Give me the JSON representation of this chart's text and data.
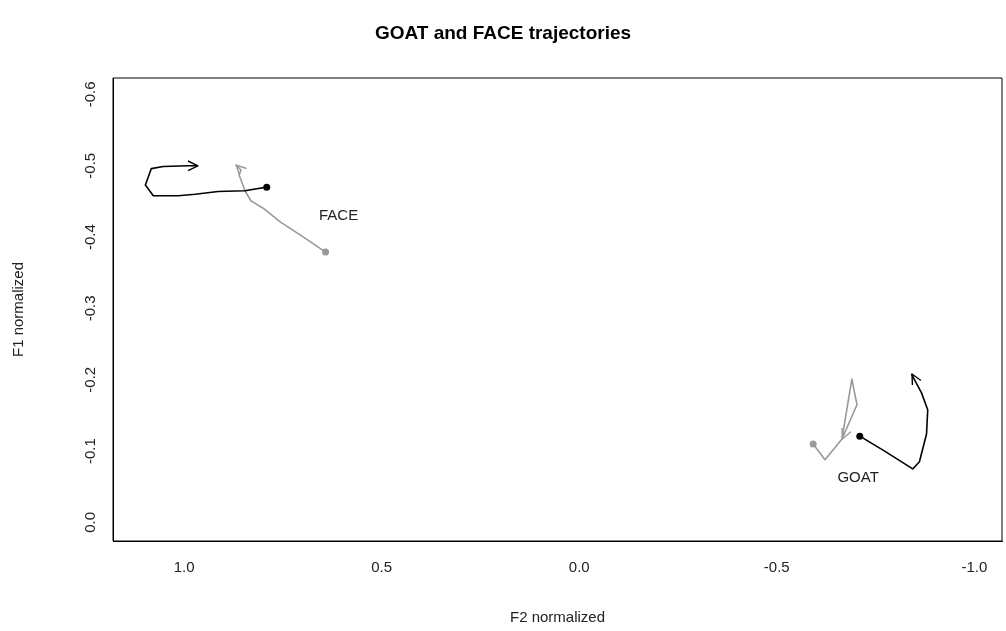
{
  "chart_data": {
    "type": "line",
    "title": "GOAT and FACE trajectories",
    "xlabel": "F2 normalized",
    "ylabel": "F1 normalized",
    "xlim": [
      1.18,
      -1.07
    ],
    "ylim": [
      0.026,
      -0.623
    ],
    "xticks": [
      {
        "value": 1.0,
        "label": "1.0"
      },
      {
        "value": 0.5,
        "label": "0.5"
      },
      {
        "value": 0.0,
        "label": "0.0"
      },
      {
        "value": -0.5,
        "label": "-0.5"
      },
      {
        "value": -1.0,
        "label": "-1.0"
      }
    ],
    "yticks": [
      {
        "value": 0.0,
        "label": "0.0"
      },
      {
        "value": -0.1,
        "label": "-0.1"
      },
      {
        "value": -0.2,
        "label": "-0.2"
      },
      {
        "value": -0.3,
        "label": "-0.3"
      },
      {
        "value": -0.4,
        "label": "-0.4"
      },
      {
        "value": -0.5,
        "label": "-0.5"
      },
      {
        "value": -0.6,
        "label": "-0.6"
      }
    ],
    "grid": false,
    "legend": false,
    "line_style": "solid",
    "annotations": [
      "FACE",
      "GOAT"
    ],
    "series": [
      {
        "color": "#000000",
        "x": [
          0.791,
          0.846,
          0.914,
          0.972,
          1.015,
          1.078,
          1.098,
          1.083,
          1.053,
          0.99,
          0.965
        ],
        "values": [
          -0.47,
          -0.465,
          -0.464,
          -0.46,
          -0.458,
          -0.458,
          -0.473,
          -0.496,
          -0.499,
          -0.5,
          -0.5
        ]
      },
      {
        "color": "#999999",
        "x": [
          0.642,
          0.695,
          0.756,
          0.796,
          0.831,
          0.846,
          0.856,
          0.861,
          0.856,
          0.869
        ],
        "values": [
          -0.379,
          -0.399,
          -0.421,
          -0.439,
          -0.451,
          -0.465,
          -0.48,
          -0.487,
          -0.494,
          -0.501
        ]
      },
      {
        "color": "#999999",
        "x": [
          -0.592,
          -0.622,
          -0.665,
          -0.69,
          -0.703,
          -0.665
        ],
        "values": [
          -0.11,
          -0.088,
          -0.117,
          -0.201,
          -0.165,
          -0.117
        ]
      },
      {
        "color": "#000000",
        "x": [
          -0.71,
          -0.773,
          -0.844,
          -0.861,
          -0.879,
          -0.882,
          -0.866,
          -0.841
        ],
        "values": [
          -0.121,
          -0.1,
          -0.075,
          -0.085,
          -0.124,
          -0.158,
          -0.182,
          -0.208
        ]
      }
    ]
  }
}
